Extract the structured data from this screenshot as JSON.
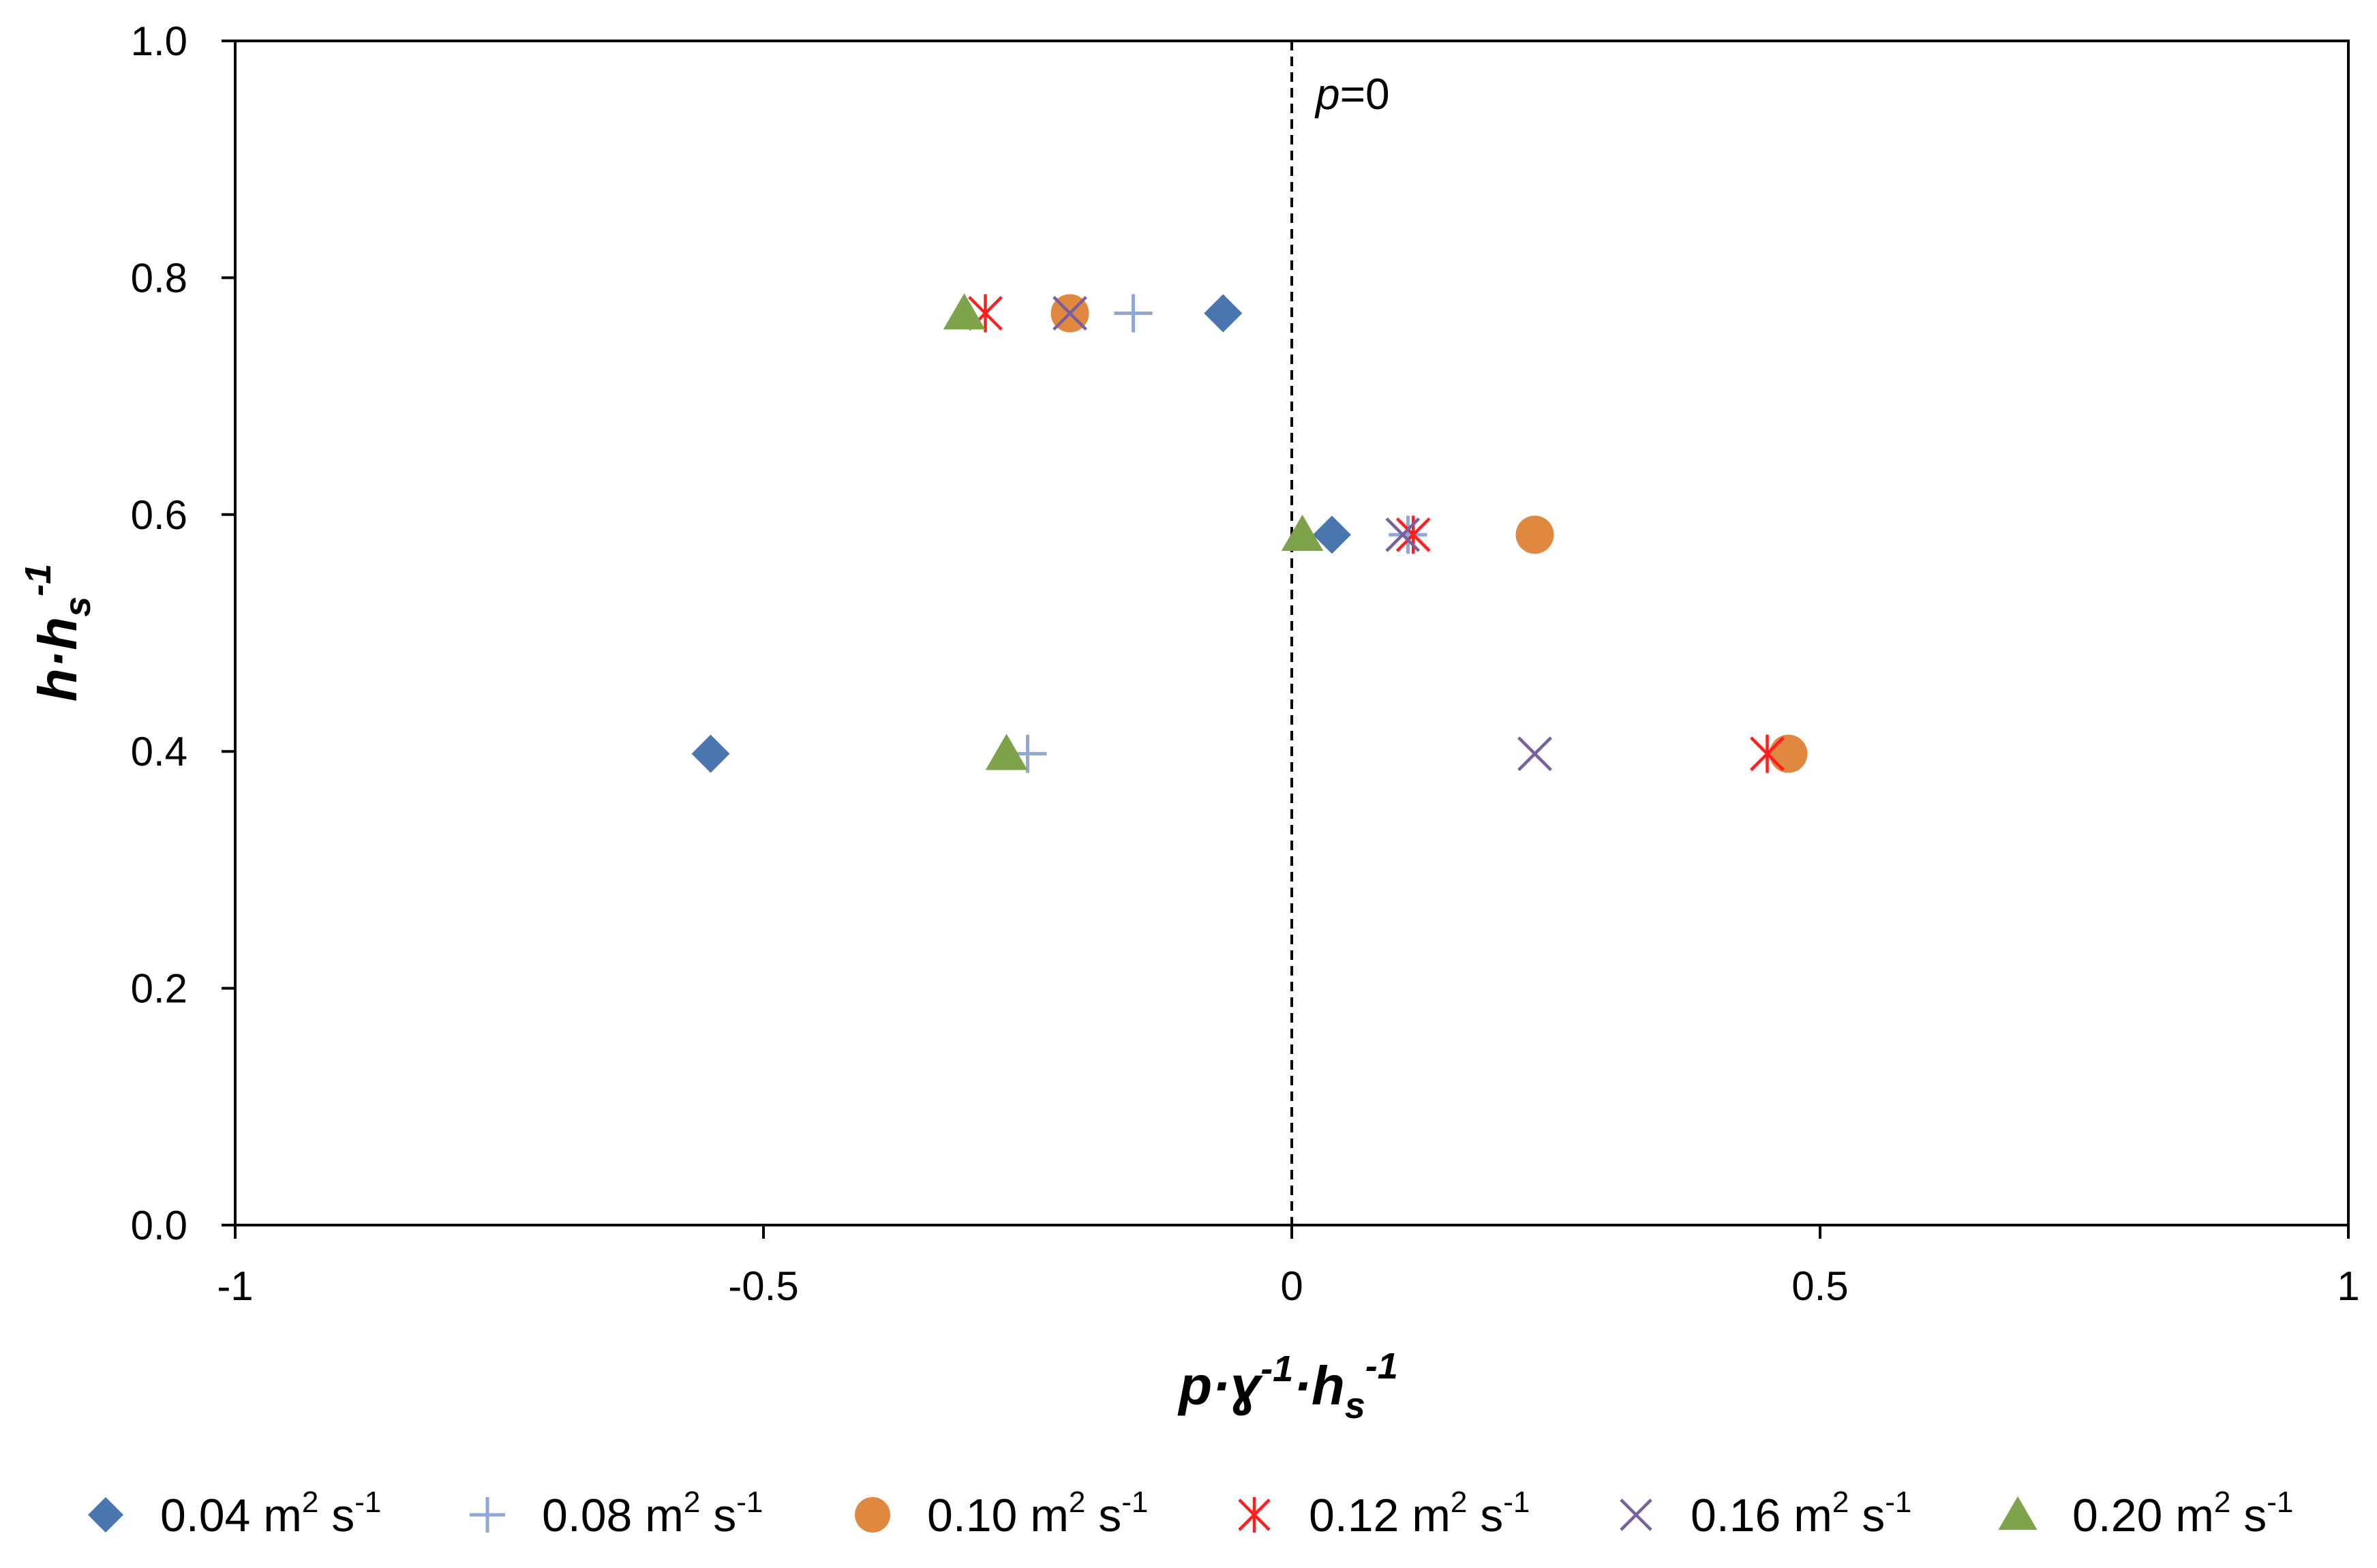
{
  "chart_data": {
    "type": "scatter",
    "title": "",
    "xlabel": "p·γ⁻¹·hₛ⁻¹",
    "ylabel": "h·hₛ⁻¹",
    "xlim": [
      -1,
      1
    ],
    "ylim": [
      0,
      1
    ],
    "x_ticks": [
      "-1",
      "-0.5",
      "0",
      "0.5",
      "1"
    ],
    "y_ticks": [
      "0.0",
      "0.2",
      "0.4",
      "0.6",
      "0.8",
      "1.0"
    ],
    "grid": false,
    "legend_position": "bottom",
    "annotation": {
      "text_var": "p",
      "text_rest": "=0",
      "x": 0
    },
    "series": [
      {
        "name": "0.04 m² s⁻¹",
        "label_num": "0.04 m",
        "label_unit": "s",
        "marker": "diamond",
        "color": "#4a76b0",
        "points": [
          [
            -0.065,
            0.77
          ],
          [
            0.038,
            0.583
          ],
          [
            -0.55,
            0.398
          ]
        ]
      },
      {
        "name": "0.08 m² s⁻¹",
        "label_num": "0.08 m",
        "label_unit": "s",
        "marker": "plus",
        "color": "#8fa8d8",
        "points": [
          [
            -0.15,
            0.77
          ],
          [
            0.11,
            0.583
          ],
          [
            -0.25,
            0.398
          ]
        ]
      },
      {
        "name": "0.10 m² s⁻¹",
        "label_num": "0.10 m",
        "label_unit": "s",
        "marker": "circle",
        "color": "#e0883f",
        "points": [
          [
            -0.21,
            0.77
          ],
          [
            0.23,
            0.583
          ],
          [
            0.47,
            0.398
          ]
        ]
      },
      {
        "name": "0.12 m² s⁻¹",
        "label_num": "0.12 m",
        "label_unit": "s",
        "marker": "asterisk",
        "color": "#ff1f1f",
        "points": [
          [
            -0.29,
            0.77
          ],
          [
            0.115,
            0.583
          ],
          [
            0.45,
            0.398
          ]
        ]
      },
      {
        "name": "0.16 m² s⁻¹",
        "label_num": "0.16 m",
        "label_unit": "s",
        "marker": "cross",
        "color": "#7a5fa0",
        "points": [
          [
            -0.21,
            0.77
          ],
          [
            0.105,
            0.583
          ],
          [
            0.23,
            0.398
          ]
        ]
      },
      {
        "name": "0.20 m² s⁻¹",
        "label_num": "0.20 m",
        "label_unit": "s",
        "marker": "triangle",
        "color": "#7ea34a",
        "points": [
          [
            -0.31,
            0.77
          ],
          [
            0.01,
            0.583
          ],
          [
            -0.27,
            0.398
          ]
        ]
      }
    ]
  }
}
